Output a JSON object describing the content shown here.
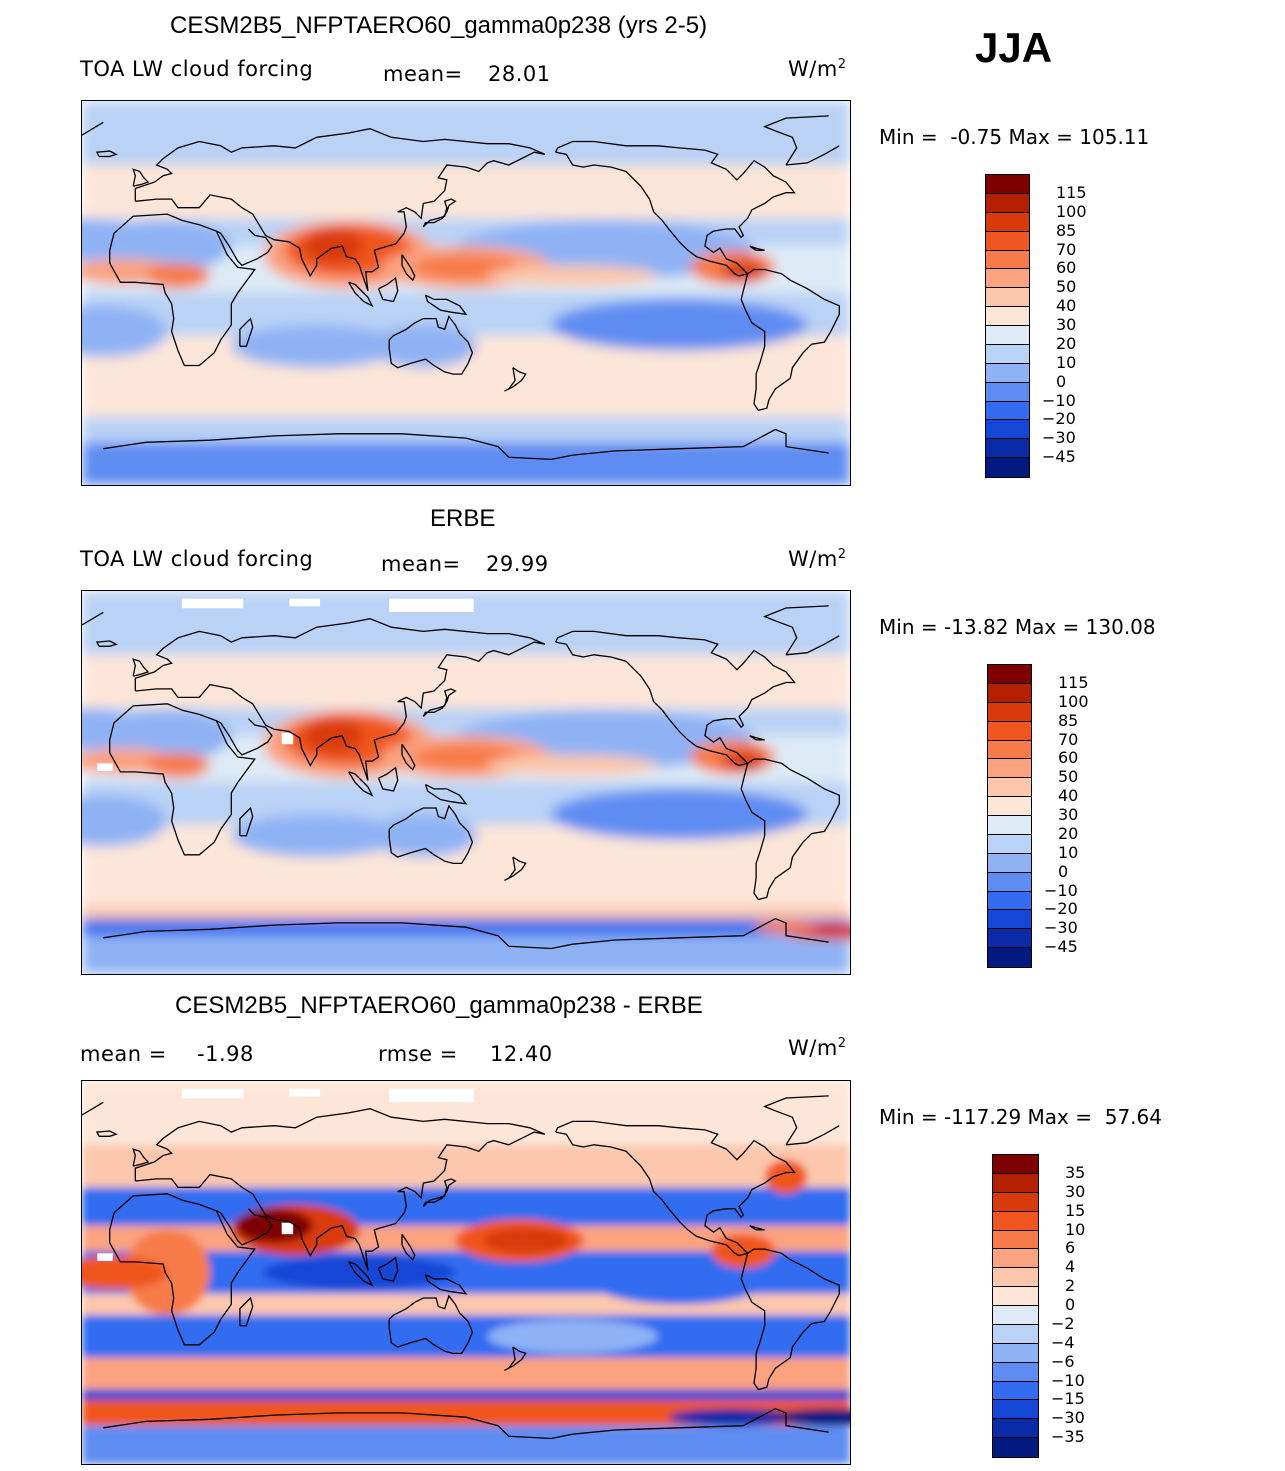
{
  "season_label": "JJA",
  "chart_data": [
    {
      "type": "heatmap",
      "title": "CESM2B5_NFPTAERO60_gamma0p238 (yrs 2-5)",
      "variable": "TOA LW cloud forcing",
      "stat_label": "mean=",
      "stat_value": "28.01",
      "units_main": "W/m",
      "units_exp": "2",
      "minmax": {
        "min_label": "Min  =",
        "min": "-0.75",
        "max_label": "Max  =",
        "max": "105.11"
      },
      "colorbar": {
        "levels": [
          "115",
          "100",
          "85",
          "70",
          "60",
          "50",
          "40",
          "30",
          "20",
          "10",
          "0",
          "−10",
          "−20",
          "−30",
          "−45"
        ],
        "colors": [
          "#7f0000",
          "#b22000",
          "#d93a0c",
          "#f0561f",
          "#f77b4a",
          "#fba27f",
          "#fcc7ad",
          "#fde6d8",
          "#deebf7",
          "#b9d2f5",
          "#8fb2f5",
          "#5e8cf2",
          "#336cf0",
          "#1447d6",
          "#0a2aa8",
          "#021a80"
        ]
      }
    },
    {
      "type": "heatmap",
      "title": "ERBE",
      "variable": "TOA LW cloud forcing",
      "stat_label": "mean=",
      "stat_value": "29.99",
      "units_main": "W/m",
      "units_exp": "2",
      "minmax": {
        "min_label": "Min  =",
        "min": "-13.82",
        "max_label": "Max  =",
        "max": "130.08"
      },
      "colorbar": {
        "levels": [
          "115",
          "100",
          "85",
          "70",
          "60",
          "50",
          "40",
          "30",
          "20",
          "10",
          "0",
          "−10",
          "−20",
          "−30",
          "−45"
        ],
        "colors": [
          "#7f0000",
          "#b22000",
          "#d93a0c",
          "#f0561f",
          "#f77b4a",
          "#fba27f",
          "#fcc7ad",
          "#fde6d8",
          "#deebf7",
          "#b9d2f5",
          "#8fb2f5",
          "#5e8cf2",
          "#336cf0",
          "#1447d6",
          "#0a2aa8",
          "#021a80"
        ]
      }
    },
    {
      "type": "heatmap",
      "title": "CESM2B5_NFPTAERO60_gamma0p238 - ERBE",
      "stat1_label": "mean  =",
      "stat1_value": "-1.98",
      "stat2_label": "rmse  =",
      "stat2_value": "12.40",
      "units_main": "W/m",
      "units_exp": "2",
      "minmax": {
        "min_label": "Min  =",
        "min": "-117.29",
        "max_label": "Max  =",
        "max": "57.64"
      },
      "colorbar": {
        "levels": [
          "35",
          "30",
          "15",
          "10",
          "6",
          "4",
          "2",
          "0",
          "−2",
          "−4",
          "−6",
          "−10",
          "−15",
          "−30",
          "−35"
        ],
        "colors": [
          "#7f0000",
          "#b22000",
          "#d93a0c",
          "#f0561f",
          "#f77b4a",
          "#fba27f",
          "#fcc7ad",
          "#fde6d8",
          "#deebf7",
          "#b9d2f5",
          "#8fb2f5",
          "#5e8cf2",
          "#336cf0",
          "#1447d6",
          "#0a2aa8",
          "#021a80"
        ]
      }
    }
  ]
}
